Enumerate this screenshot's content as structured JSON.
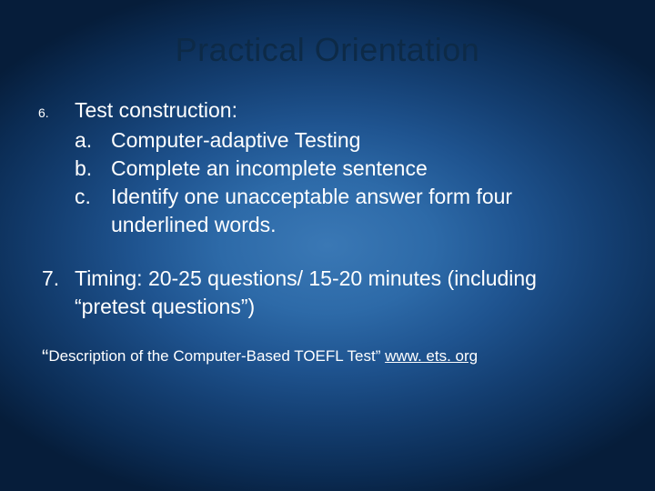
{
  "title": "Practical Orientation",
  "item6": {
    "marker": "6.",
    "heading": "Test construction:",
    "sub_a_letter": "a.",
    "sub_a_text": "Computer-adaptive Testing",
    "sub_b_letter": "b.",
    "sub_b_text": "Complete an incomplete sentence",
    "sub_c_letter": "c.",
    "sub_c_text": "Identify one unacceptable answer form four underlined words."
  },
  "item7": {
    "marker": "7.",
    "text": "Timing: 20-25 questions/ 15-20 minutes (including “pretest questions”)"
  },
  "footnote": {
    "quote": "“",
    "text": "Description of the Computer-Based TOEFL Test” ",
    "link": "www. ets. org"
  },
  "colors": {
    "title_color": "#0d2a47",
    "body_color": "#ffffff",
    "bg_center": "#3a78b5",
    "bg_edge": "#061d3a"
  },
  "typography": {
    "title_fontsize": 36,
    "body_fontsize": 23,
    "footnote_fontsize": 17,
    "item6_marker_fontsize": 14
  }
}
